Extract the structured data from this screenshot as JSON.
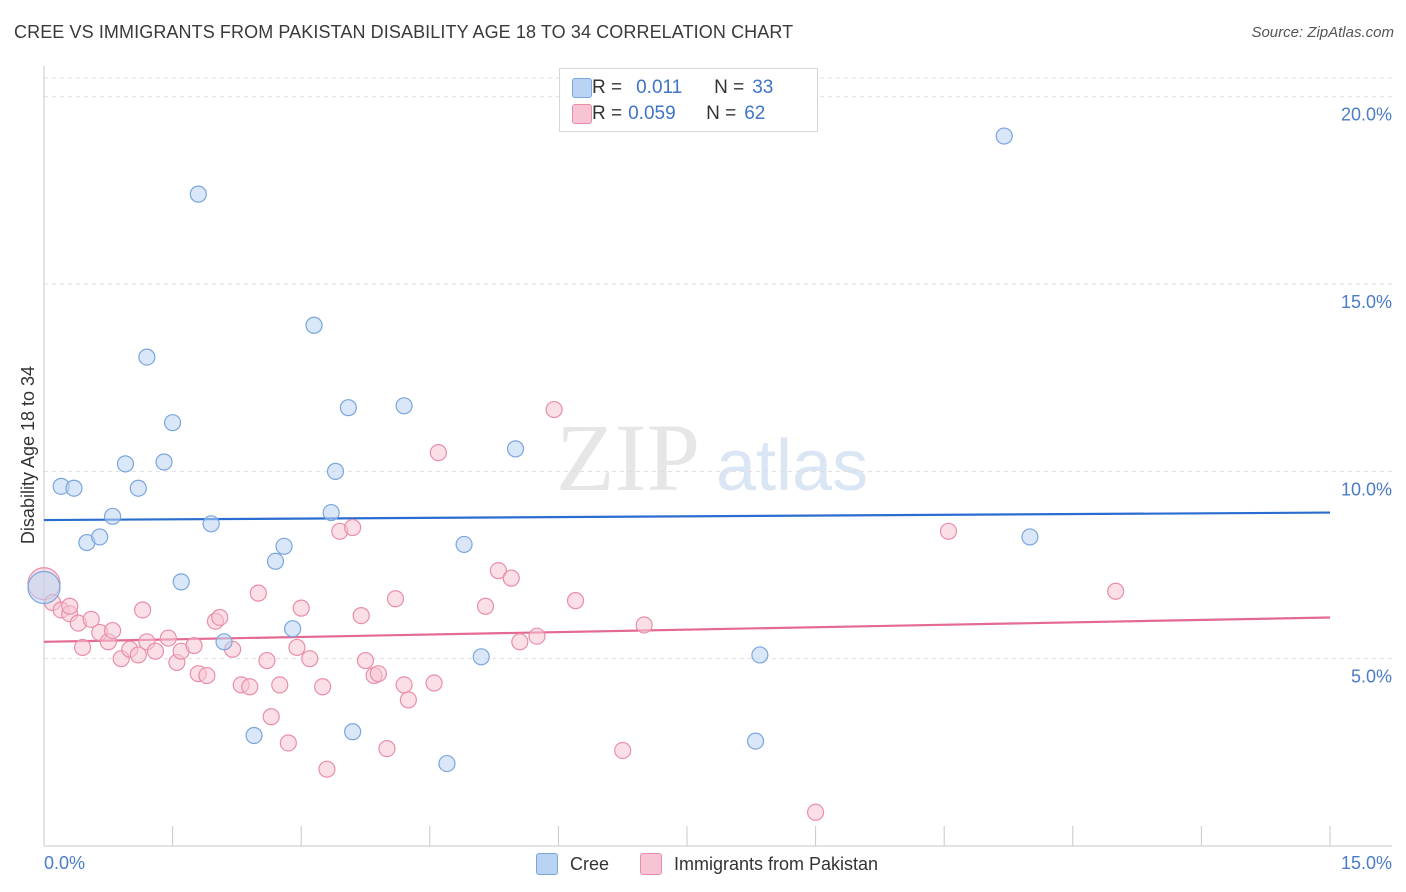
{
  "title": "CREE VS IMMIGRANTS FROM PAKISTAN DISABILITY AGE 18 TO 34 CORRELATION CHART",
  "source": "Source: ZipAtlas.com",
  "watermark": {
    "zip": "ZIP",
    "atlas": "atlas"
  },
  "stats": [
    {
      "r_label": "R =",
      "r_value": "0.011",
      "n_label": "N =",
      "n_value": "33"
    },
    {
      "r_label": "R =",
      "r_value": "0.059",
      "n_label": "N =",
      "n_value": "62"
    }
  ],
  "colors": {
    "cree_fill": "#b9d3f3",
    "cree_stroke": "#7aa6dd",
    "cree_line": "#2a6dd0",
    "pak_fill": "#f7c4d3",
    "pak_stroke": "#e98ea9",
    "pak_line": "#e46a93",
    "axis_text": "#4a7cc7",
    "grid": "#dedede"
  },
  "chart_data": {
    "type": "scatter",
    "title": "CREE VS IMMIGRANTS FROM PAKISTAN DISABILITY AGE 18 TO 34 CORRELATION CHART",
    "xlabel": "",
    "ylabel": "Disability Age 18 to 34",
    "xlim": [
      0,
      15
    ],
    "ylim": [
      0,
      20.5
    ],
    "x_tick_labels": [
      "0.0%",
      "15.0%"
    ],
    "y_ticks": [
      5,
      10,
      15,
      20
    ],
    "y_tick_labels": [
      "5.0%",
      "10.0%",
      "15.0%",
      "20.0%"
    ],
    "grid": "horizontal dashed",
    "legend_position": "bottom-center",
    "series": [
      {
        "name": "Cree",
        "trend": [
          [
            0,
            8.7
          ],
          [
            15,
            8.9
          ]
        ],
        "points": [
          [
            0.0,
            6.9
          ],
          [
            0.2,
            9.6
          ],
          [
            0.35,
            9.55
          ],
          [
            0.5,
            8.1
          ],
          [
            0.65,
            8.25
          ],
          [
            0.8,
            8.8
          ],
          [
            0.95,
            10.2
          ],
          [
            1.1,
            9.55
          ],
          [
            1.2,
            13.05
          ],
          [
            1.4,
            10.25
          ],
          [
            1.5,
            11.3
          ],
          [
            1.6,
            7.05
          ],
          [
            1.8,
            17.4
          ],
          [
            1.95,
            8.6
          ],
          [
            2.1,
            5.45
          ],
          [
            2.45,
            2.95
          ],
          [
            2.7,
            7.6
          ],
          [
            2.8,
            8.0
          ],
          [
            2.9,
            5.8
          ],
          [
            3.15,
            13.9
          ],
          [
            3.35,
            8.9
          ],
          [
            3.4,
            10.0
          ],
          [
            3.55,
            11.7
          ],
          [
            3.6,
            3.05
          ],
          [
            4.2,
            11.75
          ],
          [
            4.7,
            2.2
          ],
          [
            4.9,
            8.05
          ],
          [
            5.1,
            5.05
          ],
          [
            5.5,
            10.6
          ],
          [
            8.35,
            5.1
          ],
          [
            8.3,
            2.8
          ],
          [
            11.5,
            8.25
          ],
          [
            11.2,
            18.95
          ]
        ]
      },
      {
        "name": "Immigrants from Pakistan",
        "trend": [
          [
            0,
            5.45
          ],
          [
            15,
            6.1
          ]
        ],
        "points": [
          [
            0.0,
            7.0
          ],
          [
            0.1,
            6.5
          ],
          [
            0.2,
            6.3
          ],
          [
            0.3,
            6.2
          ],
          [
            0.4,
            5.95
          ],
          [
            0.45,
            5.3
          ],
          [
            0.55,
            6.05
          ],
          [
            0.65,
            5.7
          ],
          [
            0.75,
            5.45
          ],
          [
            0.8,
            5.75
          ],
          [
            0.9,
            5.0
          ],
          [
            1.0,
            5.25
          ],
          [
            1.1,
            5.1
          ],
          [
            1.15,
            6.3
          ],
          [
            1.2,
            5.45
          ],
          [
            1.3,
            5.2
          ],
          [
            1.45,
            5.55
          ],
          [
            1.55,
            4.9
          ],
          [
            1.6,
            5.2
          ],
          [
            1.75,
            5.35
          ],
          [
            1.8,
            4.6
          ],
          [
            1.9,
            4.55
          ],
          [
            2.0,
            6.0
          ],
          [
            2.05,
            6.1
          ],
          [
            2.2,
            5.25
          ],
          [
            2.3,
            4.3
          ],
          [
            2.4,
            4.25
          ],
          [
            2.5,
            6.75
          ],
          [
            2.6,
            4.95
          ],
          [
            2.65,
            3.45
          ],
          [
            2.75,
            4.3
          ],
          [
            2.85,
            2.75
          ],
          [
            2.95,
            5.3
          ],
          [
            3.0,
            6.35
          ],
          [
            3.1,
            5.0
          ],
          [
            3.25,
            4.25
          ],
          [
            3.3,
            2.05
          ],
          [
            3.45,
            8.4
          ],
          [
            3.6,
            8.5
          ],
          [
            3.7,
            6.15
          ],
          [
            3.75,
            4.95
          ],
          [
            3.85,
            4.55
          ],
          [
            3.9,
            4.6
          ],
          [
            4.0,
            2.6
          ],
          [
            4.1,
            6.6
          ],
          [
            4.2,
            4.3
          ],
          [
            4.25,
            3.9
          ],
          [
            4.55,
            4.35
          ],
          [
            4.6,
            10.5
          ],
          [
            5.15,
            6.4
          ],
          [
            5.3,
            7.35
          ],
          [
            5.45,
            7.15
          ],
          [
            5.55,
            5.45
          ],
          [
            5.75,
            5.6
          ],
          [
            5.95,
            11.65
          ],
          [
            6.2,
            6.55
          ],
          [
            6.75,
            2.55
          ],
          [
            7.0,
            5.9
          ],
          [
            9.0,
            0.9
          ],
          [
            10.55,
            8.4
          ],
          [
            12.5,
            6.8
          ],
          [
            0.3,
            6.4
          ]
        ]
      }
    ]
  }
}
